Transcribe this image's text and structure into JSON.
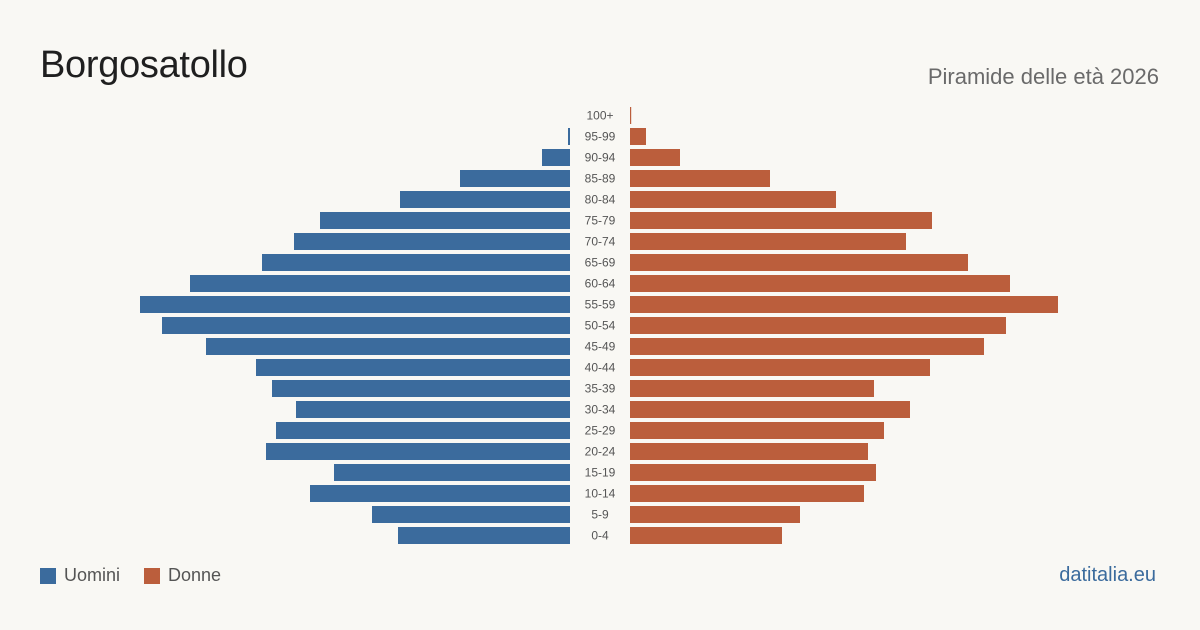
{
  "header": {
    "title": "Borgosatollo",
    "subtitle": "Piramide delle età 2026"
  },
  "legend": {
    "men_label": "Uomini",
    "women_label": "Donne"
  },
  "brand": "datitalia.eu",
  "colors": {
    "men": "#3b6b9d",
    "women": "#bb5e3c",
    "brand": "#3b6b9d",
    "background": "#f9f8f4"
  },
  "chart_data": {
    "type": "bar",
    "orientation": "horizontal",
    "title": "Piramide delle età 2026",
    "categories": [
      "100+",
      "95-99",
      "90-94",
      "85-89",
      "80-84",
      "75-79",
      "70-74",
      "65-69",
      "60-64",
      "55-59",
      "50-54",
      "45-49",
      "40-44",
      "35-39",
      "30-34",
      "25-29",
      "20-24",
      "15-19",
      "10-14",
      "5-9",
      "0-4"
    ],
    "series": [
      {
        "name": "Uomini",
        "values": [
          0,
          1,
          14,
          55,
          85,
          125,
          138,
          154,
          190,
          215,
          204,
          182,
          157,
          149,
          137,
          147,
          152,
          118,
          130,
          99,
          86
        ]
      },
      {
        "name": "Donne",
        "values": [
          0.5,
          8,
          25,
          70,
          103,
          151,
          138,
          169,
          190,
          214,
          188,
          177,
          150,
          122,
          140,
          127,
          119,
          123,
          117,
          85,
          76
        ]
      }
    ],
    "grid": false,
    "legend_position": "bottom-left"
  }
}
